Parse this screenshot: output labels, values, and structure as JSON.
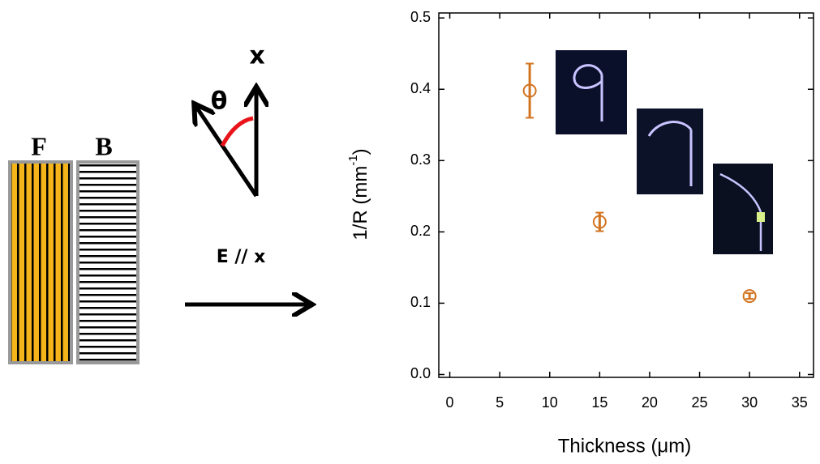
{
  "diagram": {
    "front_label": "F",
    "back_label": "B",
    "axis_label": "x",
    "angle_label": "θ",
    "field_label": "E // x"
  },
  "chart_data": {
    "type": "scatter",
    "x": [
      8,
      15,
      30
    ],
    "values": [
      0.398,
      0.214,
      0.11
    ],
    "errors": [
      0.038,
      0.013,
      0.004
    ],
    "color": "#d2731f",
    "x_label": "Thickness (μm)",
    "y_label": [
      "1/R (mm",
      "-1",
      ")"
    ],
    "xlim": [
      -1.1,
      36.4
    ],
    "ylim": [
      -0.004,
      0.507
    ],
    "xticks": [
      0,
      5,
      10,
      15,
      20,
      25,
      30,
      35
    ],
    "yticks": [
      {
        "value": 0,
        "label": "0.0"
      },
      0.1,
      0.2,
      0.3,
      0.4,
      0.5
    ]
  }
}
